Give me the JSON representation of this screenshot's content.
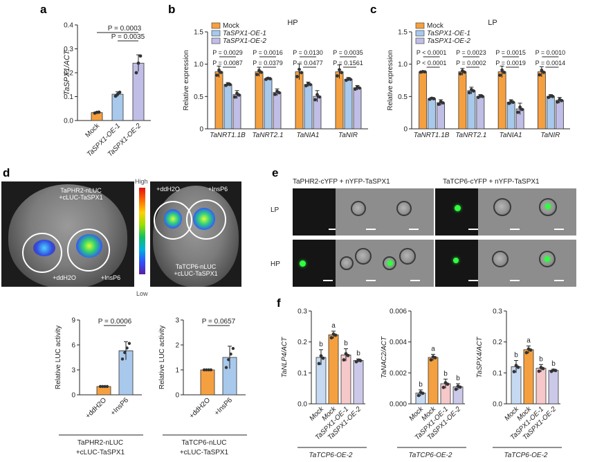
{
  "panel_letters": {
    "a": "a",
    "b": "b",
    "c": "c",
    "d": "d",
    "e": "e",
    "f": "f"
  },
  "colors": {
    "mock": "#F5A040",
    "oe1": "#A8C8EC",
    "oe2": "#C0BEE6",
    "f_mock": "#C5DAF2",
    "f_tcp6": "#F5A040",
    "f_oe1": "#F6C8CA",
    "f_oe2": "#CBC8EA"
  },
  "chart_data": [
    {
      "id": "a",
      "type": "bar",
      "categories": [
        "Mock",
        "TaSPX1-OE-1",
        "TaSPX1-OE-2"
      ],
      "values": [
        0.033,
        0.11,
        0.24
      ],
      "errors": [
        0.003,
        0.01,
        0.035
      ],
      "points": [
        [
          0.031,
          0.034,
          0.035
        ],
        [
          0.102,
          0.11,
          0.118
        ],
        [
          0.2,
          0.24,
          0.27
        ]
      ],
      "ylabel": "TaSPX1/ACT",
      "yticks": [
        "0.0",
        "0.1",
        "0.2",
        "0.3",
        "0.4"
      ],
      "ylim": [
        0,
        0.4
      ],
      "annotations": [
        "P = 0.0035",
        "P = 0.0003"
      ]
    },
    {
      "id": "b",
      "type": "bar",
      "title": "HP",
      "categories": [
        "TaNRT1.1B",
        "TaNRT2.1",
        "TaNIA1",
        "TaNIR"
      ],
      "series": [
        {
          "name": "Mock",
          "values": [
            1.0,
            1.0,
            1.0,
            1.0
          ],
          "errors": [
            0.1,
            0.08,
            0.14,
            0.12
          ]
        },
        {
          "name": "TaSPX1-OE-1",
          "values": [
            0.78,
            0.88,
            0.78,
            0.87
          ],
          "errors": [
            0.03,
            0.02,
            0.04,
            0.03
          ]
        },
        {
          "name": "TaSPX1-OE-2",
          "values": [
            0.6,
            0.64,
            0.57,
            0.72
          ],
          "errors": [
            0.07,
            0.06,
            0.1,
            0.04
          ]
        }
      ],
      "ylabel": "Relative expression",
      "yticks": [
        "0",
        "0.5",
        "1.0",
        "1.5"
      ],
      "ylim": [
        0,
        1.7
      ],
      "legend": "top-left",
      "annotations": [
        [
          "P = 0.0029",
          "P = 0.0016",
          "P = 0.0130",
          "P = 0.0035"
        ],
        [
          "P = 0.0087",
          "P = 0.0379",
          "P = 0.0477",
          "P = 0.1561"
        ]
      ]
    },
    {
      "id": "c",
      "type": "bar",
      "title": "LP",
      "categories": [
        "TaNRT1.1B",
        "TaNRT2.1",
        "TaNIA1",
        "TaNIR"
      ],
      "series": [
        {
          "name": "Mock",
          "values": [
            1.0,
            1.0,
            1.0,
            1.0
          ],
          "errors": [
            0.01,
            0.06,
            0.1,
            0.09
          ]
        },
        {
          "name": "TaSPX1-OE-1",
          "values": [
            0.53,
            0.67,
            0.47,
            0.57
          ],
          "errors": [
            0.02,
            0.06,
            0.04,
            0.03
          ]
        },
        {
          "name": "TaSPX1-OE-2",
          "values": [
            0.46,
            0.57,
            0.35,
            0.5
          ],
          "errors": [
            0.05,
            0.03,
            0.1,
            0.05
          ]
        }
      ],
      "ylabel": "Relative expression",
      "yticks": [
        "0",
        "0.5",
        "1.0",
        "1.5"
      ],
      "ylim": [
        0,
        1.7
      ],
      "legend": "top-left",
      "annotations": [
        [
          "P < 0.0001",
          "P = 0.0023",
          "P = 0.0015",
          "P = 0.0010"
        ],
        [
          "P < 0.0001",
          "P = 0.0002",
          "P = 0.0019",
          "P = 0.0014"
        ]
      ]
    },
    {
      "id": "d1",
      "type": "bar",
      "categories": [
        "+ddH2O",
        "+InsP6"
      ],
      "values": [
        1.0,
        5.3
      ],
      "errors": [
        0,
        1.1
      ],
      "ylabel": "Relative LUC activity",
      "yticks": [
        "0",
        "3",
        "6",
        "9"
      ],
      "ylim": [
        0,
        9
      ],
      "annotations": [
        "P = 0.0006"
      ],
      "group_label": [
        "TaPHR2-nLUC",
        "+cLUC-TaSPX1"
      ]
    },
    {
      "id": "d2",
      "type": "bar",
      "categories": [
        "+ddH2O",
        "+InsP6"
      ],
      "values": [
        1.0,
        1.5
      ],
      "errors": [
        0,
        0.45
      ],
      "ylabel": "Relative LUC activity",
      "yticks": [
        "0",
        "1",
        "2",
        "3"
      ],
      "ylim": [
        0,
        3
      ],
      "annotations": [
        "P = 0.0657"
      ],
      "group_label": [
        "TaTCP6-nLUC",
        "+cLUC-TaSPX1"
      ]
    },
    {
      "id": "f1",
      "type": "bar",
      "categories": [
        "Mock",
        "Mock",
        "TaSPX1-OE-1",
        "TaSPX1-OE-2"
      ],
      "values": [
        0.15,
        0.223,
        0.158,
        0.14
      ],
      "errors": [
        0.025,
        0.012,
        0.02,
        0.005
      ],
      "letters": [
        "b",
        "a",
        "b",
        "b"
      ],
      "ylabel": "TaNLP4/ACT",
      "yticks": [
        "0.0",
        "0.1",
        "0.2",
        "0.3"
      ],
      "ylim": [
        0,
        0.3
      ],
      "group_label": "TaTCP6-OE-2"
    },
    {
      "id": "f2",
      "type": "bar",
      "categories": [
        "Mock",
        "Mock",
        "TaSPX1-OE-1",
        "TaSPX1-OE-2"
      ],
      "values": [
        0.0007,
        0.003,
        0.0013,
        0.0011
      ],
      "errors": [
        0.0002,
        0.0002,
        0.0003,
        0.0002
      ],
      "letters": [
        "b",
        "a",
        "b",
        "b"
      ],
      "ylabel": "TaNAC2/ACT",
      "yticks": [
        "0.000",
        "0.002",
        "0.004",
        "0.006"
      ],
      "ylim": [
        0,
        0.006
      ],
      "group_label": "TaTCP6-OE-2"
    },
    {
      "id": "f3",
      "type": "bar",
      "categories": [
        "Mock",
        "Mock",
        "TaSPX1-OE-1",
        "TaSPX1-OE-2"
      ],
      "values": [
        0.12,
        0.175,
        0.115,
        0.108
      ],
      "errors": [
        0.02,
        0.012,
        0.012,
        0.004
      ],
      "letters": [
        "b",
        "a",
        "b",
        "b"
      ],
      "ylabel": "TaSPX4/ACT",
      "yticks": [
        "0.0",
        "0.1",
        "0.2",
        "0.3"
      ],
      "ylim": [
        0,
        0.3
      ],
      "group_label": "TaTCP6-OE-2"
    }
  ],
  "panel_d": {
    "leaf1_top_label": [
      "TaPHR2-nLUC",
      "+cLUC-TaSPX1"
    ],
    "leaf1_left": "+ddH2O",
    "leaf1_right": "+InsP6",
    "leaf2_left": "+ddH2O",
    "leaf2_right": "+InsP6",
    "leaf2_bottom_label": [
      "TaTCP6-nLUC",
      "+cLUC-TaSPX1"
    ],
    "scale_high": "High",
    "scale_low": "Low"
  },
  "panel_e": {
    "title_left": "TaPHR2-cYFP + nYFP-TaSPX1",
    "title_right": "TaTCP6-cYFP + nYFP-TaSPX1",
    "row_lp": "LP",
    "row_hp": "HP"
  }
}
